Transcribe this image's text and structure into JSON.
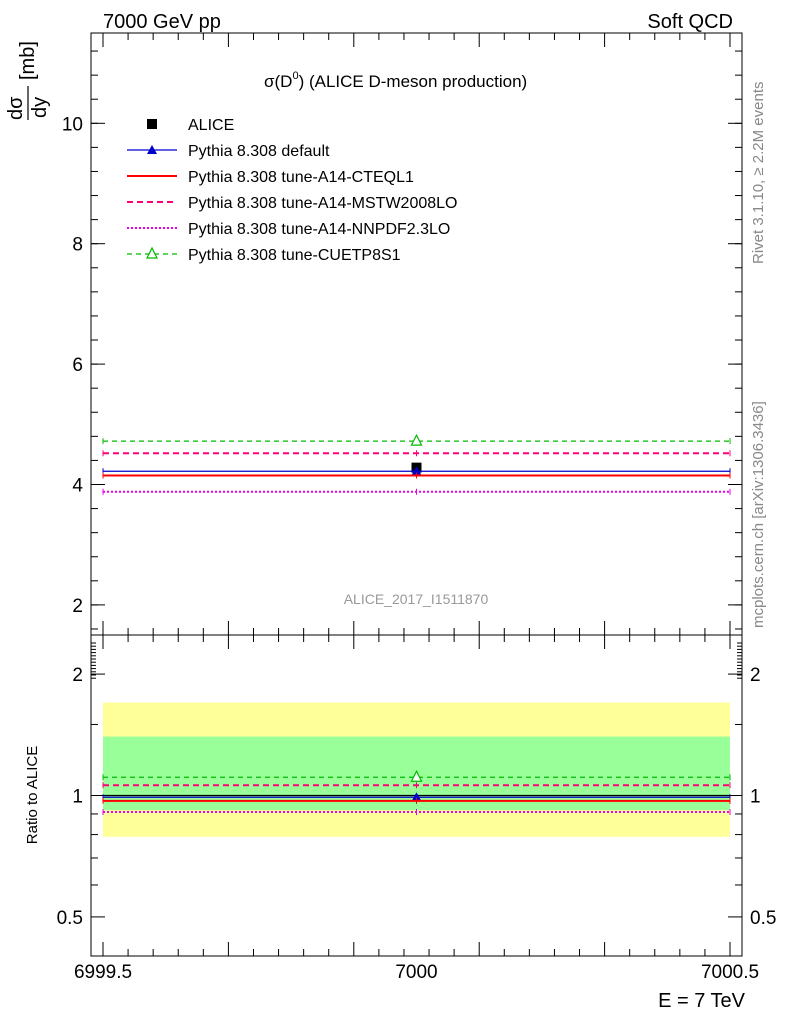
{
  "header": {
    "left": "7000 GeV pp",
    "right": "Soft QCD"
  },
  "side_text": {
    "rivet": "Rivet 3.1.10, ≥ 2.2M events",
    "mcplots": "mcplots.cern.ch [arXiv:1306.3436]"
  },
  "colors": {
    "alice": "#000000",
    "default": "#0000cc",
    "cteql1": "#ff0000",
    "mstw": "#ff0077",
    "nnpdf": "#ee00ee",
    "cuetp": "#00bb00",
    "band_outer": "#ffff99",
    "band_inner": "#99ff99"
  },
  "chart_data": [
    {
      "type": "scatter",
      "title": "σ(D⁰) (ALICE D-meson production)",
      "title_main": "σ(D",
      "title_sup": "0",
      "title_rest": ") (ALICE D-meson production)",
      "ylabel_num": "dσ",
      "ylabel_den": "dy",
      "ylabel_unit": "[mb]",
      "watermark": "ALICE_2017_I1511870",
      "xlim": [
        6999.5,
        7000.5
      ],
      "ylim": [
        1.5,
        11.5
      ],
      "yticks": [
        2,
        4,
        6,
        8,
        10
      ],
      "log_y": false,
      "legend_position": "top-left",
      "series": [
        {
          "key": "alice",
          "name": "ALICE",
          "style": "data",
          "x": [
            7000
          ],
          "y": [
            4.28
          ]
        },
        {
          "key": "default",
          "name": "Pythia 8.308 default",
          "style": "solid-triangle",
          "x": [
            7000
          ],
          "y": [
            4.22
          ]
        },
        {
          "key": "cteql1",
          "name": "Pythia 8.308 tune-A14-CTEQL1",
          "style": "solid",
          "x": [
            7000
          ],
          "y": [
            4.15
          ]
        },
        {
          "key": "mstw",
          "name": "Pythia 8.308 tune-A14-MSTW2008LO",
          "style": "dashed",
          "x": [
            7000
          ],
          "y": [
            4.52
          ]
        },
        {
          "key": "nnpdf",
          "name": "Pythia 8.308 tune-A14-NNPDF2.3LO",
          "style": "dotted",
          "x": [
            7000
          ],
          "y": [
            3.88
          ]
        },
        {
          "key": "cuetp",
          "name": "Pythia 8.308 tune-CUETP8S1",
          "style": "dashed-open-triangle",
          "x": [
            7000
          ],
          "y": [
            4.72
          ]
        }
      ]
    },
    {
      "type": "scatter",
      "ylabel": "Ratio to ALICE",
      "xlabel": "E = 7 TeV",
      "xlim": [
        6999.5,
        7000.5
      ],
      "xticks": [
        "6999.5",
        "7000",
        "7000.5"
      ],
      "xtick_values": [
        6999.5,
        7000,
        7000.5
      ],
      "ylim": [
        0.4,
        2.5
      ],
      "log_y": true,
      "yticks": [
        "0.5",
        "1",
        "2"
      ],
      "ytick_values": [
        0.5,
        1,
        2
      ],
      "bands": {
        "outer": [
          0.79,
          1.7
        ],
        "inner": [
          0.92,
          1.4
        ]
      },
      "series": [
        {
          "key": "default",
          "y": [
            0.99
          ]
        },
        {
          "key": "cteql1",
          "y": [
            0.97
          ]
        },
        {
          "key": "mstw",
          "y": [
            1.06
          ]
        },
        {
          "key": "nnpdf",
          "y": [
            0.91
          ]
        },
        {
          "key": "cuetp",
          "y": [
            1.11
          ]
        }
      ]
    }
  ]
}
